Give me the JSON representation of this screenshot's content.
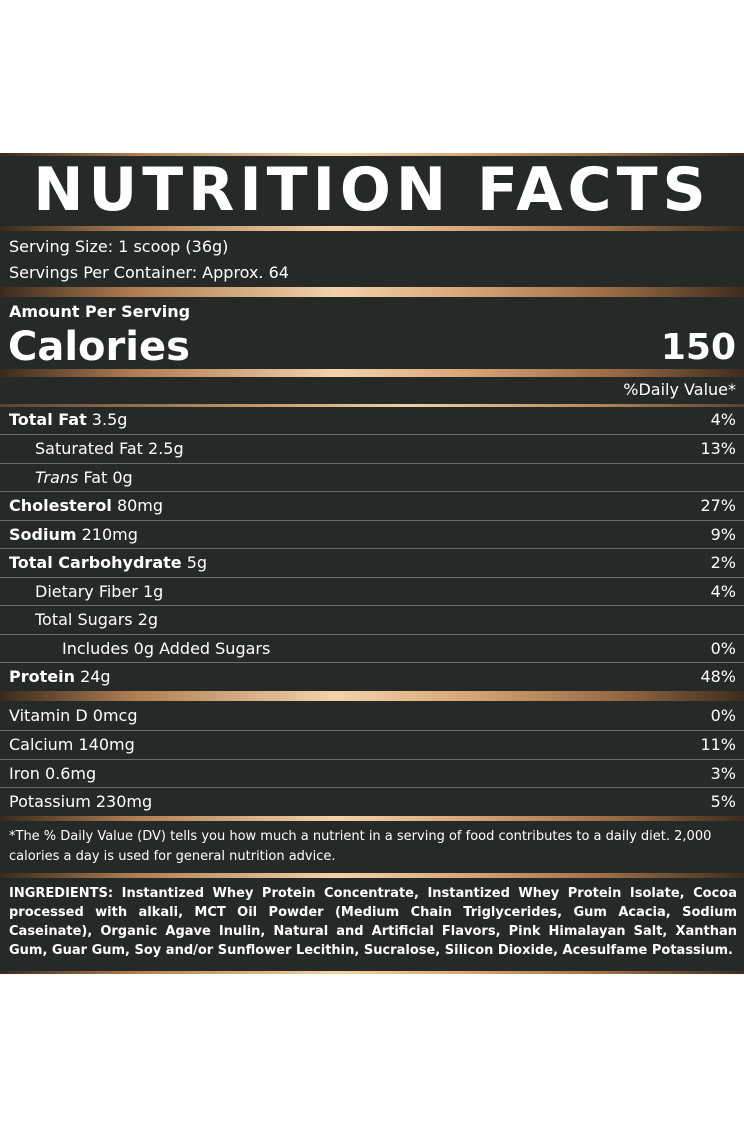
{
  "title": "NUTRITION FACTS",
  "serving_size": "Serving Size: 1 scoop (36g)",
  "servings_per_container": "Servings Per Container: Approx. 64",
  "amount_per_serving": "Amount Per Serving",
  "calories_label": "Calories",
  "calories_value": "150",
  "daily_value_header": "%Daily Value*",
  "nutrients": {
    "total_fat": {
      "name": "Total Fat",
      "amount": " 3.5g",
      "dv": "4%"
    },
    "saturated_fat": {
      "name": "Saturated Fat 2.5g",
      "dv": "13%"
    },
    "trans_fat": {
      "name": "Trans",
      "amount": " Fat 0g"
    },
    "cholesterol": {
      "name": "Cholesterol",
      "amount": " 80mg",
      "dv": "27%"
    },
    "sodium": {
      "name": "Sodium",
      "amount": " 210mg",
      "dv": "9%"
    },
    "total_carbohydrate": {
      "name": "Total Carbohydrate",
      "amount": " 5g",
      "dv": "2%"
    },
    "dietary_fiber": {
      "name": "Dietary Fiber 1g",
      "dv": "4%"
    },
    "total_sugars": {
      "name": "Total Sugars 2g"
    },
    "added_sugars": {
      "name": "Includes 0g Added Sugars",
      "dv": "0%"
    },
    "protein": {
      "name": "Protein",
      "amount": " 24g",
      "dv": "48%"
    }
  },
  "vitamins": {
    "vitamin_d": {
      "name": "Vitamin D 0mcg",
      "dv": "0%"
    },
    "calcium": {
      "name": "Calcium 140mg",
      "dv": "11%"
    },
    "iron": {
      "name": "Iron 0.6mg",
      "dv": "3%"
    },
    "potassium": {
      "name": "Potassium 230mg",
      "dv": "5%"
    }
  },
  "footnote": "*The % Daily Value (DV) tells you how much a nutrient in a serving of food contributes to a daily diet. 2,000 calories a day is used for general nutrition advice.",
  "ingredients": "INGREDIENTS: Instantized Whey Protein Concentrate, Instantized Whey Protein Isolate, Cocoa processed with alkali, MCT Oil Powder (Medium Chain Triglycerides, Gum Acacia, Sodium Caseinate), Organic Agave Inulin, Natural and Artificial Flavors, Pink Himalayan Salt, Xanthan Gum, Guar Gum, Soy and/or Sunflower Lecithin, Sucralose, Silicon Dioxide, Acesulfame Potassium.",
  "colors": {
    "panel": "#252a29",
    "gold_light": "#f3d2aa",
    "gold_dark": "#9b6c45",
    "text": "#ffffff"
  }
}
